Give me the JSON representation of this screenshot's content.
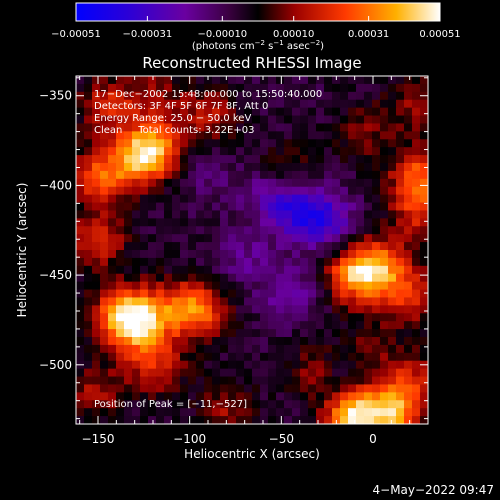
{
  "chart_data": {
    "type": "heatmap",
    "title": "Reconstructed RHESSI Image",
    "xlabel": "Heliocentric X (arcsec)",
    "ylabel": "Heliocentric Y (arcsec)",
    "xlim": [
      -162,
      30
    ],
    "ylim": [
      -533,
      -339
    ],
    "x_ticks": [
      -150,
      -100,
      -50,
      0
    ],
    "x_tick_labels": [
      "−150",
      "−100",
      "−50",
      "0"
    ],
    "y_ticks": [
      -350,
      -400,
      -450,
      -500
    ],
    "y_tick_labels": [
      "−350",
      "−400",
      "−450",
      "−500"
    ],
    "colorbar": {
      "range": [
        -0.00051,
        0.00051
      ],
      "ticks": [
        -0.00051,
        -0.00031,
        -0.0001,
        0.0001,
        0.00031,
        0.00051
      ],
      "tick_labels": [
        "−0.00051",
        "−0.00031",
        "−0.00010",
        "0.00010",
        "0.00031",
        "0.00051"
      ],
      "units_text": "(photons cm",
      "units_sup1": "−2",
      "units_mid": " s",
      "units_sup2": "−1",
      "units_mid2": " asec",
      "units_sup3": "−2",
      "units_end": ")"
    },
    "annotations": [
      "17−Dec−2002 15:48:00.000 to 15:50:40.000",
      "Detectors: 3F 4F 5F 6F 7F 8F, Att 0",
      "Energy Range: 25.0 − 50.0 keV",
      "Clean     Total counts: 3.22E+03"
    ],
    "peak_label": "Position of Peak = [−11,−527]",
    "peak_position": [
      -11,
      -527
    ],
    "hotspots": [
      {
        "x": -150,
        "y": -395,
        "v": 0.0003
      },
      {
        "x": -128,
        "y": -385,
        "v": 0.00038
      },
      {
        "x": -118,
        "y": -378,
        "v": 0.00028
      },
      {
        "x": -145,
        "y": -355,
        "v": 0.00022
      },
      {
        "x": -120,
        "y": -350,
        "v": 0.00016
      },
      {
        "x": -90,
        "y": -360,
        "v": 0.0002
      },
      {
        "x": -150,
        "y": -430,
        "v": 0.00025
      },
      {
        "x": -137,
        "y": -470,
        "v": 0.00028
      },
      {
        "x": -130,
        "y": -478,
        "v": 0.00042
      },
      {
        "x": -112,
        "y": -468,
        "v": 0.0002
      },
      {
        "x": -95,
        "y": -470,
        "v": 0.00034
      },
      {
        "x": -118,
        "y": -500,
        "v": 0.00024
      },
      {
        "x": -150,
        "y": -515,
        "v": 0.00018
      },
      {
        "x": -5,
        "y": -370,
        "v": 0.00014
      },
      {
        "x": 25,
        "y": -355,
        "v": 0.00018
      },
      {
        "x": 25,
        "y": -395,
        "v": 0.00032
      },
      {
        "x": 25,
        "y": -415,
        "v": 0.00022
      },
      {
        "x": -48,
        "y": -392,
        "v": 0.00014
      },
      {
        "x": -10,
        "y": -450,
        "v": 0.0004
      },
      {
        "x": 5,
        "y": -445,
        "v": 0.00032
      },
      {
        "x": 20,
        "y": -462,
        "v": 0.00024
      },
      {
        "x": 22,
        "y": -510,
        "v": 0.00022
      },
      {
        "x": 0,
        "y": -490,
        "v": 0.00012
      },
      {
        "x": -11,
        "y": -527,
        "v": 0.00051
      },
      {
        "x": 10,
        "y": -527,
        "v": 0.0004
      },
      {
        "x": -30,
        "y": -505,
        "v": 0.0002
      },
      {
        "x": -80,
        "y": -525,
        "v": 0.00016
      }
    ],
    "coldspots": [
      {
        "x": -40,
        "y": -415,
        "v": -0.00024
      },
      {
        "x": -25,
        "y": -420,
        "v": -0.00022
      },
      {
        "x": -55,
        "y": -405,
        "v": -0.00018
      },
      {
        "x": -45,
        "y": -460,
        "v": -0.00016
      },
      {
        "x": -70,
        "y": -440,
        "v": -0.00012
      },
      {
        "x": -20,
        "y": -510,
        "v": -0.00016
      },
      {
        "x": -90,
        "y": -395,
        "v": -8e-05
      }
    ],
    "background_level": -6e-05
  },
  "footer": {
    "date": "4−May−2022 09:47"
  }
}
